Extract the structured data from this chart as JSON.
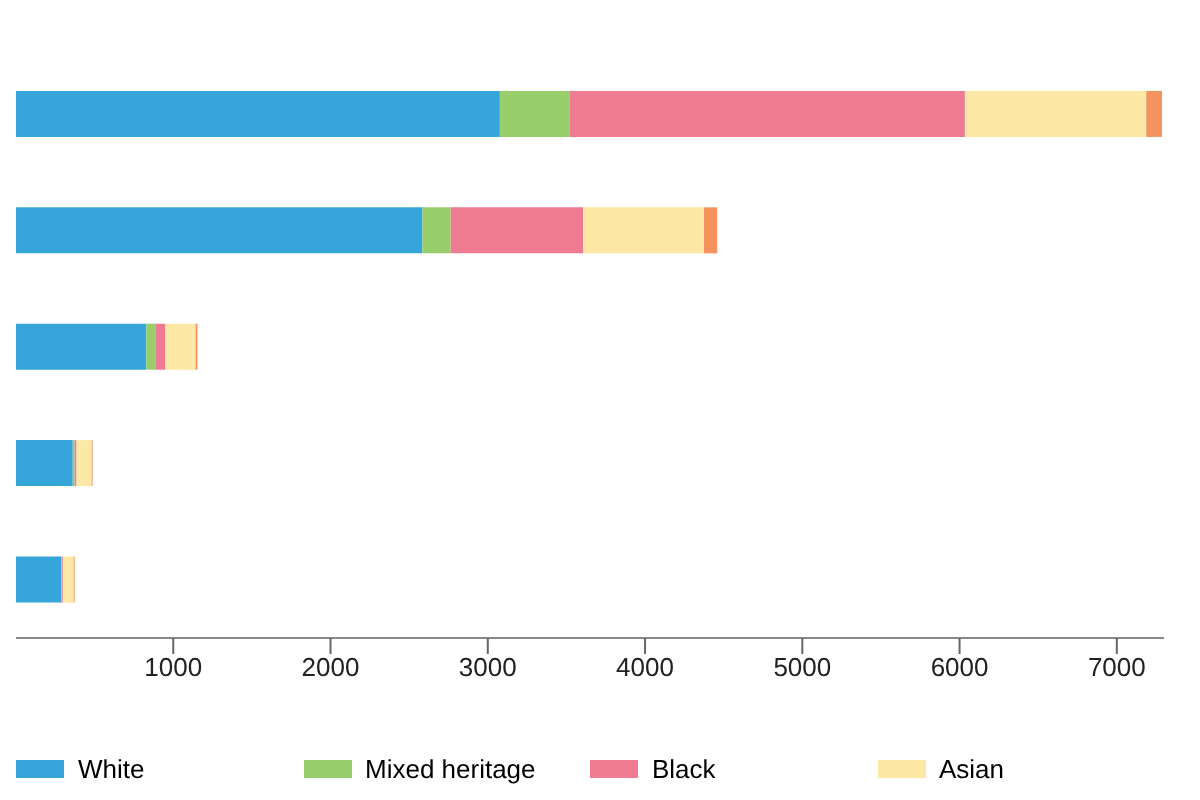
{
  "chart_data": {
    "type": "bar",
    "orientation": "horizontal",
    "stacked": true,
    "categories": [
      null,
      null,
      null,
      null,
      null
    ],
    "series": [
      {
        "name": "White",
        "color": "#36a6da",
        "values": [
          3077,
          2584,
          829,
          361,
          288
        ]
      },
      {
        "name": "Mixed heritage",
        "color": "#97cd6b",
        "values": [
          445,
          180,
          60,
          12,
          6
        ]
      },
      {
        "name": "Black",
        "color": "#ef7b93",
        "values": [
          2512,
          842,
          61,
          12,
          6
        ]
      },
      {
        "name": "Asian",
        "color": "#fee8a6",
        "values": [
          1153,
          769,
          192,
          96,
          67
        ]
      },
      {
        "color": "#f5925e",
        "values": [
          100,
          84,
          12,
          6,
          6
        ]
      }
    ],
    "xlim": [
      0,
      7300
    ],
    "xticks": [
      1000,
      2000,
      3000,
      4000,
      5000,
      6000,
      7000
    ],
    "legend": "bottom"
  }
}
